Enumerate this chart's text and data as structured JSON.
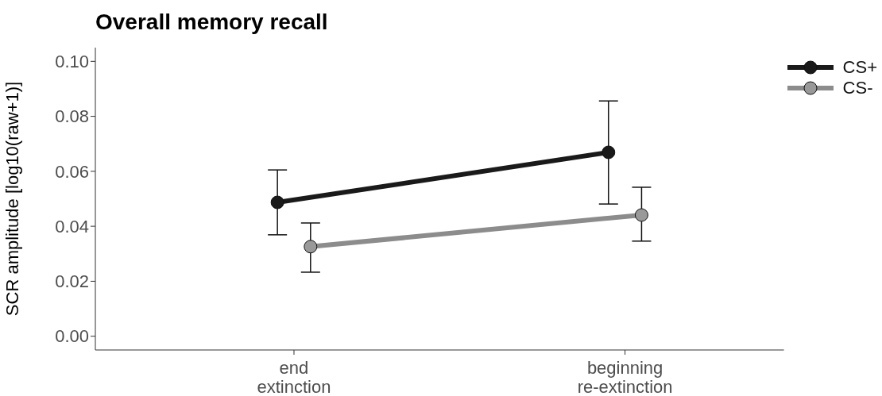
{
  "chart_data": {
    "type": "line",
    "title": "Overall memory recall",
    "ylabel": "SCR amplitude [log10(raw+1)]",
    "categories": [
      "end extinction",
      "beginning re-extinction"
    ],
    "series": [
      {
        "name": "CS+",
        "color": "#1a1a1a",
        "values": [
          0.0487,
          0.0669
        ],
        "errors": [
          [
            0.0369,
            0.0605
          ],
          [
            0.0481,
            0.0856
          ]
        ]
      },
      {
        "name": "CS-",
        "color": "#8c8c8c",
        "values": [
          0.0326,
          0.0441
        ],
        "errors": [
          [
            0.0233,
            0.0412
          ],
          [
            0.0346,
            0.0542
          ]
        ]
      }
    ],
    "ylim": [
      -0.005,
      0.105
    ],
    "yticks": [
      {
        "value": 0,
        "label": "0.00"
      },
      {
        "value": 0.02,
        "label": "0.02"
      },
      {
        "value": 0.04,
        "label": "0.04"
      },
      {
        "value": 0.06,
        "label": "0.06"
      },
      {
        "value": 0.08,
        "label": "0.08"
      },
      {
        "value": 0.1,
        "label": "0.10"
      }
    ],
    "grid": false,
    "legend": "top right",
    "marker": "circle",
    "line_style": "solid"
  }
}
